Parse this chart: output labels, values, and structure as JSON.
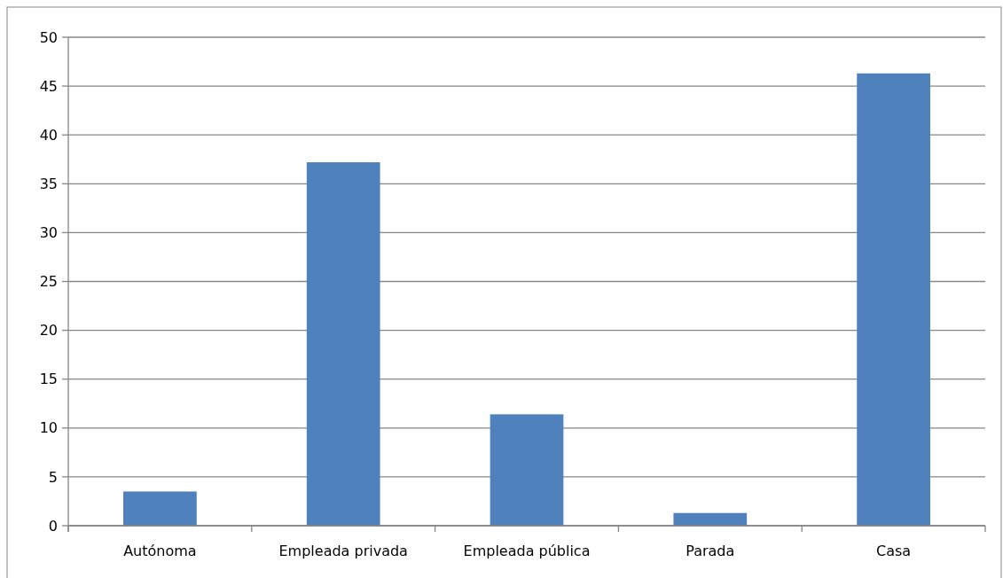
{
  "chart_data": {
    "type": "bar",
    "categories": [
      "Autónoma",
      "Empleada privada",
      "Empleada pública",
      "Parada",
      "Casa"
    ],
    "values": [
      3.5,
      37.2,
      11.4,
      1.3,
      46.3
    ],
    "color": "#4f81bd",
    "ylim": [
      0,
      50
    ],
    "yticks": [
      0,
      5,
      10,
      15,
      20,
      25,
      30,
      35,
      40,
      45,
      50
    ],
    "grid": "y"
  }
}
